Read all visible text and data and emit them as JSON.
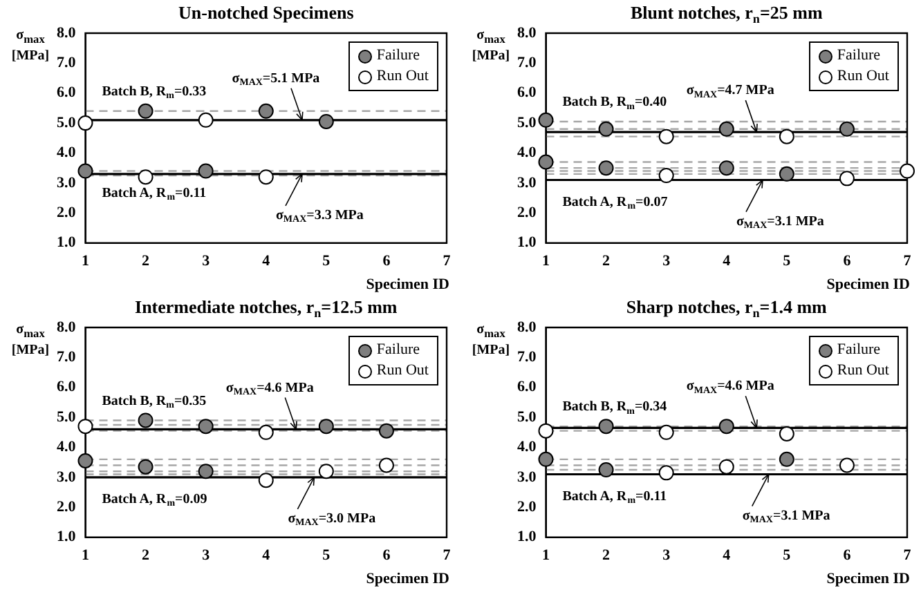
{
  "chart_data": [
    {
      "type": "scatter",
      "title": "Un-notched Specimens",
      "xlabel": "Specimen ID",
      "ylabel": "σ$_{max}$ [MPa]",
      "xlim": [
        1,
        7
      ],
      "xticks": [
        1,
        2,
        3,
        4,
        5,
        6,
        7
      ],
      "ylim": [
        1,
        8
      ],
      "yticks": [
        {
          "value": 1,
          "label": "1.0"
        },
        {
          "value": 2,
          "label": "2.0"
        },
        {
          "value": 3,
          "label": "3.0"
        },
        {
          "value": 4,
          "label": "4.0"
        },
        {
          "value": 5,
          "label": "5.0"
        },
        {
          "value": 6,
          "label": "6.0"
        },
        {
          "value": 7,
          "label": "7.0"
        },
        {
          "value": 8,
          "label": "8.0"
        }
      ],
      "grid": false,
      "legend": "top right",
      "marker": "circle",
      "series": [
        {
          "name": "Failure",
          "color": "#7f7f7f",
          "x": [
            1,
            2,
            3,
            4,
            5
          ],
          "values": [
            3.4,
            5.4,
            3.4,
            5.4,
            5.05
          ]
        },
        {
          "name": "Run Out",
          "color": "#ffffff",
          "x": [
            1,
            2,
            3,
            4
          ],
          "values": [
            5.0,
            3.2,
            5.1,
            3.2
          ]
        }
      ],
      "ref_lines": [
        {
          "axis": "y",
          "value": 5.4,
          "color": "#a6a6a6",
          "line_style": "dashed"
        },
        {
          "axis": "y",
          "value": 3.4,
          "color": "#a6a6a6",
          "line_style": "dashed"
        },
        {
          "axis": "y",
          "value": 3.25,
          "color": "#a6a6a6",
          "line_style": "dashed"
        },
        {
          "axis": "y",
          "value": 5.1,
          "color": "#000000",
          "line_style": "solid"
        },
        {
          "axis": "y",
          "value": 3.3,
          "color": "#000000",
          "line_style": "solid"
        }
      ],
      "annotations": [
        {
          "text": "Batch B, R$_{m}$=0.33",
          "x": 1,
          "y": 5.4
        },
        {
          "text": "σ$_{MAX}$=5.1 MPa",
          "x": 4.6,
          "y": 5.1
        },
        {
          "text": "Batch A, R$_{m}$=0.11",
          "x": 1,
          "y": 3.4
        },
        {
          "text": "σ$_{MAX}$=3.3 MPa",
          "x": 4.6,
          "y": 3.3
        }
      ]
    },
    {
      "type": "scatter",
      "title": "Blunt notches, r$_{n}$=25 mm",
      "xlabel": "Specimen ID",
      "ylabel": "σ$_{max}$ [MPa]",
      "xlim": [
        1,
        7
      ],
      "xticks": [
        1,
        2,
        3,
        4,
        5,
        6,
        7
      ],
      "ylim": [
        1,
        8
      ],
      "yticks": [
        {
          "value": 1,
          "label": "1.0"
        },
        {
          "value": 2,
          "label": "2.0"
        },
        {
          "value": 3,
          "label": "3.0"
        },
        {
          "value": 4,
          "label": "4.0"
        },
        {
          "value": 5,
          "label": "5.0"
        },
        {
          "value": 6,
          "label": "6.0"
        },
        {
          "value": 7,
          "label": "7.0"
        },
        {
          "value": 8,
          "label": "8.0"
        }
      ],
      "grid": false,
      "legend": "top right",
      "marker": "circle",
      "series": [
        {
          "name": "Failure",
          "color": "#7f7f7f",
          "x": [
            1,
            1,
            2,
            2,
            4,
            4,
            5,
            6
          ],
          "values": [
            5.1,
            3.7,
            4.8,
            3.5,
            4.8,
            3.5,
            3.3,
            4.8
          ]
        },
        {
          "name": "Run Out",
          "color": "#ffffff",
          "x": [
            3,
            3,
            5,
            6,
            7
          ],
          "values": [
            4.55,
            3.25,
            4.55,
            3.15,
            3.4
          ]
        }
      ],
      "ref_lines": [
        {
          "axis": "y",
          "value": 5.05,
          "color": "#a6a6a6",
          "line_style": "dashed"
        },
        {
          "axis": "y",
          "value": 4.8,
          "color": "#a6a6a6",
          "line_style": "dashed"
        },
        {
          "axis": "y",
          "value": 4.55,
          "color": "#a6a6a6",
          "line_style": "dashed"
        },
        {
          "axis": "y",
          "value": 3.7,
          "color": "#a6a6a6",
          "line_style": "dashed"
        },
        {
          "axis": "y",
          "value": 3.5,
          "color": "#a6a6a6",
          "line_style": "dashed"
        },
        {
          "axis": "y",
          "value": 3.4,
          "color": "#a6a6a6",
          "line_style": "dashed"
        },
        {
          "axis": "y",
          "value": 3.3,
          "color": "#a6a6a6",
          "line_style": "dashed"
        },
        {
          "axis": "y",
          "value": 4.7,
          "color": "#000000",
          "line_style": "solid"
        },
        {
          "axis": "y",
          "value": 3.1,
          "color": "#000000",
          "line_style": "solid"
        }
      ],
      "annotations": [
        {
          "text": "Batch B, R$_{m}$=0.40",
          "x": 1,
          "y": 5.05
        },
        {
          "text": "σ$_{MAX}$=4.7 MPa",
          "x": 4.5,
          "y": 4.7
        },
        {
          "text": "Batch A, R$_{m}$=0.07",
          "x": 1,
          "y": 3.1
        },
        {
          "text": "σ$_{MAX}$=3.1 MPa",
          "x": 4.6,
          "y": 3.1
        }
      ]
    },
    {
      "type": "scatter",
      "title": "Intermediate notches, r$_{n}$=12.5 mm",
      "xlabel": "Specimen ID",
      "ylabel": "σ$_{max}$ [MPa]",
      "xlim": [
        1,
        7
      ],
      "xticks": [
        1,
        2,
        3,
        4,
        5,
        6,
        7
      ],
      "ylim": [
        1,
        8
      ],
      "yticks": [
        {
          "value": 1,
          "label": "1.0"
        },
        {
          "value": 2,
          "label": "2.0"
        },
        {
          "value": 3,
          "label": "3.0"
        },
        {
          "value": 4,
          "label": "4.0"
        },
        {
          "value": 5,
          "label": "5.0"
        },
        {
          "value": 6,
          "label": "6.0"
        },
        {
          "value": 7,
          "label": "7.0"
        },
        {
          "value": 8,
          "label": "8.0"
        }
      ],
      "grid": false,
      "legend": "top right",
      "marker": "circle",
      "series": [
        {
          "name": "Failure",
          "color": "#7f7f7f",
          "x": [
            1,
            2,
            2,
            3,
            3,
            5,
            6
          ],
          "values": [
            3.55,
            4.9,
            3.35,
            4.7,
            3.2,
            4.7,
            4.55
          ]
        },
        {
          "name": "Run Out",
          "color": "#ffffff",
          "x": [
            1,
            4,
            4,
            5,
            6
          ],
          "values": [
            4.7,
            4.5,
            2.9,
            3.2,
            3.4
          ]
        }
      ],
      "ref_lines": [
        {
          "axis": "y",
          "value": 4.9,
          "color": "#a6a6a6",
          "line_style": "dashed"
        },
        {
          "axis": "y",
          "value": 4.75,
          "color": "#a6a6a6",
          "line_style": "dashed"
        },
        {
          "axis": "y",
          "value": 4.55,
          "color": "#a6a6a6",
          "line_style": "dashed"
        },
        {
          "axis": "y",
          "value": 3.6,
          "color": "#a6a6a6",
          "line_style": "dashed"
        },
        {
          "axis": "y",
          "value": 3.4,
          "color": "#a6a6a6",
          "line_style": "dashed"
        },
        {
          "axis": "y",
          "value": 3.2,
          "color": "#a6a6a6",
          "line_style": "dashed"
        },
        {
          "axis": "y",
          "value": 3.1,
          "color": "#a6a6a6",
          "line_style": "dashed"
        },
        {
          "axis": "y",
          "value": 4.6,
          "color": "#000000",
          "line_style": "solid"
        },
        {
          "axis": "y",
          "value": 3.0,
          "color": "#000000",
          "line_style": "solid"
        }
      ],
      "annotations": [
        {
          "text": "Batch B, R$_{m}$=0.35",
          "x": 1,
          "y": 4.9
        },
        {
          "text": "σ$_{MAX}$=4.6 MPa",
          "x": 4.5,
          "y": 4.6
        },
        {
          "text": "Batch A, R$_{m}$=0.09",
          "x": 1,
          "y": 3.0
        },
        {
          "text": "σ$_{MAX}$=3.0 MPa",
          "x": 4.8,
          "y": 3.0
        }
      ]
    },
    {
      "type": "scatter",
      "title": "Sharp notches, r$_{n}$=1.4 mm",
      "xlabel": "Specimen ID",
      "ylabel": "σ$_{max}$ [MPa]",
      "xlim": [
        1,
        7
      ],
      "xticks": [
        1,
        2,
        3,
        4,
        5,
        6,
        7
      ],
      "ylim": [
        1,
        8
      ],
      "yticks": [
        {
          "value": 1,
          "label": "1.0"
        },
        {
          "value": 2,
          "label": "2.0"
        },
        {
          "value": 3,
          "label": "3.0"
        },
        {
          "value": 4,
          "label": "4.0"
        },
        {
          "value": 5,
          "label": "5.0"
        },
        {
          "value": 6,
          "label": "6.0"
        },
        {
          "value": 7,
          "label": "7.0"
        },
        {
          "value": 8,
          "label": "8.0"
        }
      ],
      "grid": false,
      "legend": "top right",
      "marker": "circle",
      "series": [
        {
          "name": "Failure",
          "color": "#7f7f7f",
          "x": [
            1,
            2,
            2,
            4,
            5
          ],
          "values": [
            3.6,
            4.7,
            3.25,
            4.7,
            3.6
          ]
        },
        {
          "name": "Run Out",
          "color": "#ffffff",
          "x": [
            1,
            3,
            3,
            4,
            5,
            6
          ],
          "values": [
            4.55,
            4.5,
            3.15,
            3.35,
            4.45,
            3.4
          ]
        }
      ],
      "ref_lines": [
        {
          "axis": "y",
          "value": 4.7,
          "color": "#a6a6a6",
          "line_style": "dashed"
        },
        {
          "axis": "y",
          "value": 4.55,
          "color": "#a6a6a6",
          "line_style": "dashed"
        },
        {
          "axis": "y",
          "value": 3.6,
          "color": "#a6a6a6",
          "line_style": "dashed"
        },
        {
          "axis": "y",
          "value": 3.4,
          "color": "#a6a6a6",
          "line_style": "dashed"
        },
        {
          "axis": "y",
          "value": 3.25,
          "color": "#a6a6a6",
          "line_style": "dashed"
        },
        {
          "axis": "y",
          "value": 4.65,
          "color": "#000000",
          "line_style": "solid"
        },
        {
          "axis": "y",
          "value": 3.1,
          "color": "#000000",
          "line_style": "solid"
        }
      ],
      "annotations": [
        {
          "text": "Batch B, R$_{m}$=0.34",
          "x": 1,
          "y": 4.7
        },
        {
          "text": "σ$_{MAX}$=4.6 MPa",
          "x": 4.5,
          "y": 4.65
        },
        {
          "text": "Batch A, R$_{m}$=0.11",
          "x": 1,
          "y": 3.1
        },
        {
          "text": "σ$_{MAX}$=3.1 MPa",
          "x": 4.7,
          "y": 3.1
        }
      ]
    }
  ]
}
